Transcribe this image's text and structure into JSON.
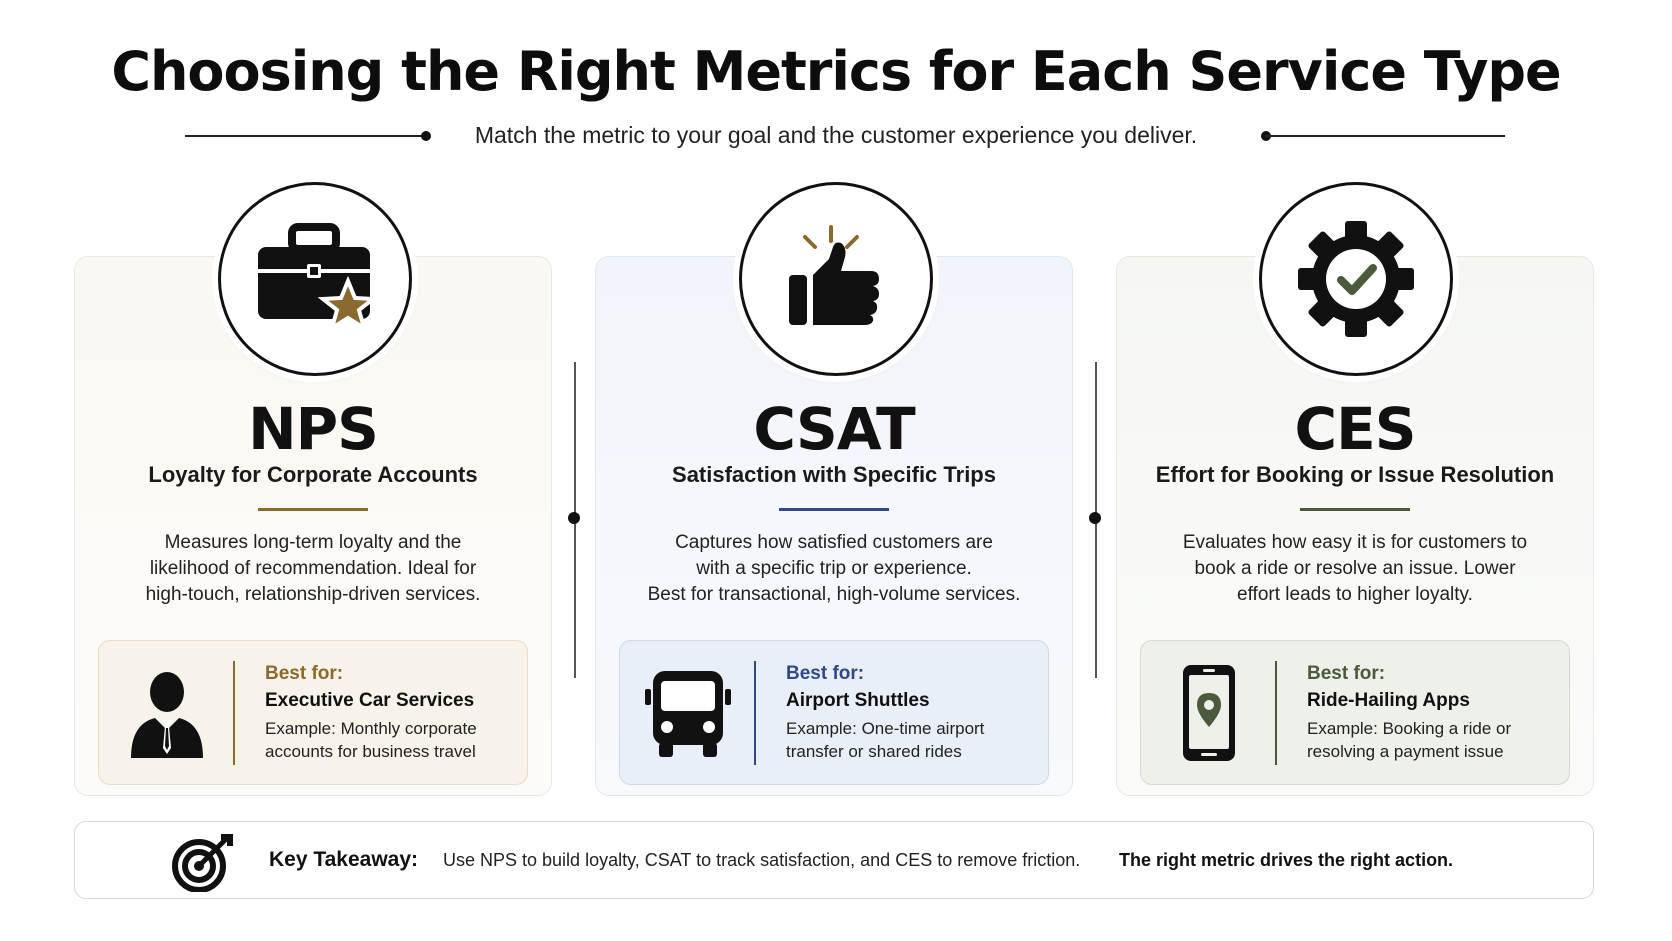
{
  "header": {
    "title": "Choosing the Right Metrics for Each Service Type",
    "subtitle": "Match the metric to your goal and the customer experience you deliver."
  },
  "colors": {
    "nps_accent": "#8a6a2f",
    "csat_accent": "#2f4a8a",
    "ces_accent": "#4a5a3a"
  },
  "cards": [
    {
      "metric": "NPS",
      "subtitle": "Loyalty for Corporate Accounts",
      "description": [
        "Measures long-term loyalty and the",
        "likelihood of recommendation. Ideal for",
        "high-touch, relationship-driven services."
      ],
      "icon": "briefcase-star-icon",
      "best_for_label": "Best for:",
      "best_for_name": "Executive Car Services",
      "best_for_example": "Example: Monthly corporate accounts for business travel",
      "best_icon": "business-person-icon"
    },
    {
      "metric": "CSAT",
      "subtitle": "Satisfaction with Specific Trips",
      "description": [
        "Captures how satisfied customers are",
        "with a specific trip or experience.",
        "Best for transactional, high-volume services."
      ],
      "icon": "thumbs-up-icon",
      "best_for_label": "Best for:",
      "best_for_name": "Airport Shuttles",
      "best_for_example": "Example: One-time airport transfer or shared rides",
      "best_icon": "shuttle-bus-icon"
    },
    {
      "metric": "CES",
      "subtitle": "Effort for Booking or Issue Resolution",
      "description": [
        "Evaluates how easy it is for customers to",
        "book a ride or resolve an issue. Lower",
        "effort leads to higher loyalty."
      ],
      "icon": "gear-check-icon",
      "best_for_label": "Best for:",
      "best_for_name": "Ride-Hailing Apps",
      "best_for_example": "Example: Booking a ride or resolving a payment issue",
      "best_icon": "smartphone-location-icon"
    }
  ],
  "takeaway": {
    "label": "Key Takeaway:",
    "text": "Use NPS to build loyalty, CSAT to track satisfaction, and CES to remove friction.",
    "bold": "The right metric drives the right action.",
    "icon": "target-arrow-icon"
  }
}
